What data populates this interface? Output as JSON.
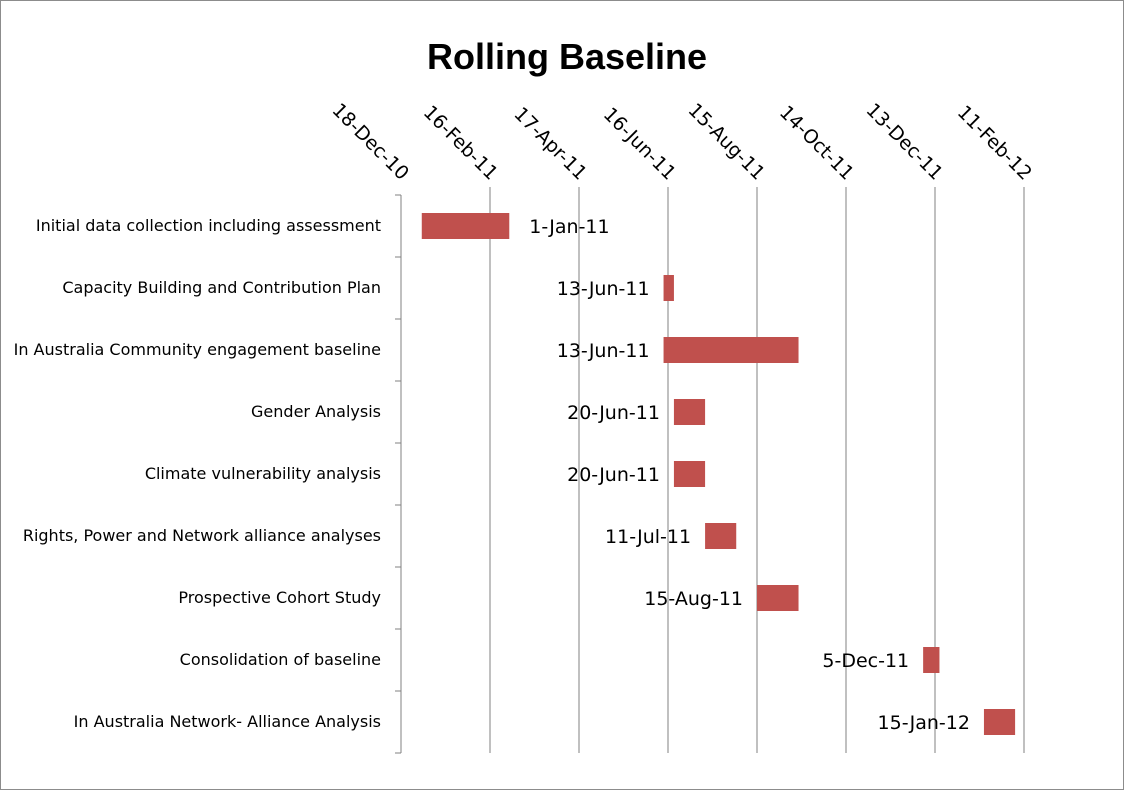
{
  "chart_data": {
    "type": "bar",
    "orientation": "horizontal",
    "subtype": "gantt",
    "title": "Rolling Baseline",
    "x_axis": {
      "scale": "date",
      "position": "top",
      "min": "2010-12-18",
      "max": "2012-02-11",
      "major_unit_days": 60,
      "tick_labels": [
        "18-Dec-10",
        "16-Feb-11",
        "17-Apr-11",
        "16-Jun-11",
        "15-Aug-11",
        "14-Oct-11",
        "13-Dec-11",
        "11-Feb-12"
      ],
      "vertical_gridlines": true
    },
    "categories": [
      "Initial data collection including assessment",
      "Capacity Building and Contribution Plan",
      "In Australia Community engagement baseline",
      "Gender Analysis",
      "Climate vulnerability analysis",
      "Rights, Power and Network alliance analyses",
      "Prospective Cohort Study",
      "Consolidation of baseline",
      "In Australia Network- Alliance Analysis"
    ],
    "tasks": [
      {
        "start": "2011-01-01",
        "end": "2011-03-01",
        "label": "1-Jan-11"
      },
      {
        "start": "2011-06-13",
        "end": "2011-06-20",
        "label": "13-Jun-11"
      },
      {
        "start": "2011-06-13",
        "end": "2011-09-12",
        "label": "13-Jun-11"
      },
      {
        "start": "2011-06-20",
        "end": "2011-07-11",
        "label": "20-Jun-11"
      },
      {
        "start": "2011-06-20",
        "end": "2011-07-11",
        "label": "20-Jun-11"
      },
      {
        "start": "2011-07-11",
        "end": "2011-08-01",
        "label": "11-Jul-11"
      },
      {
        "start": "2011-08-15",
        "end": "2011-09-12",
        "label": "15-Aug-11"
      },
      {
        "start": "2011-12-05",
        "end": "2011-12-16",
        "label": "5-Dec-11"
      },
      {
        "start": "2012-01-15",
        "end": "2012-02-05",
        "label": "15-Jan-12"
      }
    ],
    "legend": "none",
    "colors": {
      "bar": "#c0504d",
      "grid": "#808080",
      "axis": "#808080"
    }
  }
}
